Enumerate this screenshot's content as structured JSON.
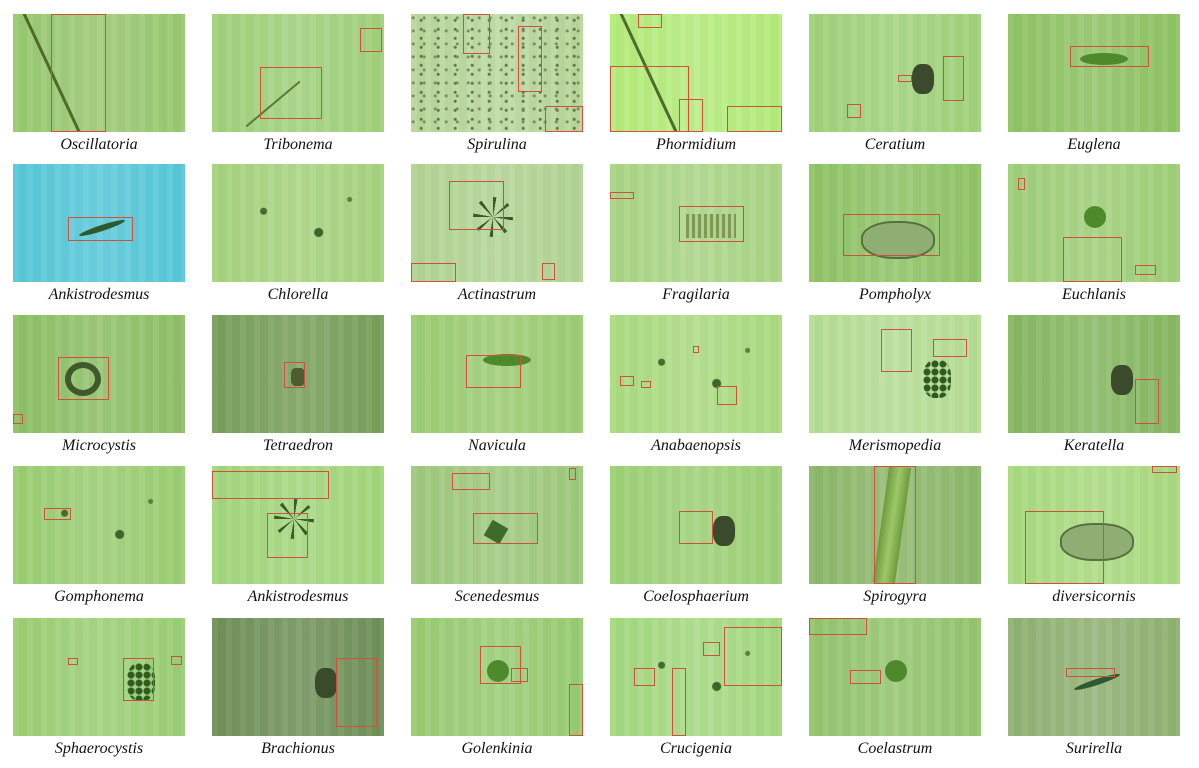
{
  "grid": {
    "rows": [
      {
        "cells": [
          {
            "label": "Oscillatoria",
            "bg": "#98c970",
            "organism": "filament-diagonal",
            "boxes": [
              [
                0.22,
                0.0,
                0.32,
                1.0
              ]
            ]
          },
          {
            "label": "Tribonema",
            "bg": "#a0d17a",
            "organism": "filament-diagonal-short",
            "boxes": [
              [
                0.28,
                0.45,
                0.36,
                0.44
              ],
              [
                0.86,
                0.12,
                0.13,
                0.2
              ]
            ]
          },
          {
            "label": "Spirulina",
            "bg": "#b8d79a",
            "organism": "speckled",
            "boxes": [
              [
                0.3,
                0.0,
                0.16,
                0.34
              ],
              [
                0.62,
                0.1,
                0.14,
                0.56
              ],
              [
                0.78,
                0.78,
                0.22,
                0.22
              ]
            ]
          },
          {
            "label": "Phormidium",
            "bg": "#b4ec7a",
            "organism": "filament-diagonal",
            "boxes": [
              [
                0.0,
                0.44,
                0.46,
                0.56
              ],
              [
                0.4,
                0.72,
                0.14,
                0.28
              ],
              [
                0.68,
                0.78,
                0.32,
                0.22
              ],
              [
                0.16,
                0.0,
                0.14,
                0.12
              ]
            ]
          },
          {
            "label": "Ceratium",
            "bg": "#9fd27a",
            "organism": "cell-dark",
            "boxes": [
              [
                0.78,
                0.36,
                0.12,
                0.38
              ],
              [
                0.52,
                0.52,
                0.08,
                0.06
              ],
              [
                0.22,
                0.76,
                0.08,
                0.12
              ]
            ]
          },
          {
            "label": "Euglena",
            "bg": "#8fc364",
            "organism": "cell-spindle",
            "boxes": [
              [
                0.36,
                0.27,
                0.46,
                0.18
              ]
            ]
          }
        ]
      },
      {
        "cells": [
          {
            "label": "Ankistrodesmus",
            "bg": "#56c8d8",
            "organism": "cell-needle",
            "boxes": [
              [
                0.32,
                0.45,
                0.38,
                0.2
              ]
            ]
          },
          {
            "label": "Chlorella",
            "bg": "#a6d37e",
            "organism": "dots",
            "boxes": []
          },
          {
            "label": "Actinastrum",
            "bg": "#b1d493",
            "organism": "star",
            "boxes": [
              [
                0.22,
                0.14,
                0.32,
                0.42
              ],
              [
                0.76,
                0.84,
                0.08,
                0.14
              ],
              [
                0.0,
                0.84,
                0.26,
                0.16
              ]
            ]
          },
          {
            "label": "Fragilaria",
            "bg": "#a9d585",
            "organism": "cell-rect",
            "boxes": [
              [
                0.4,
                0.36,
                0.38,
                0.3
              ],
              [
                0.0,
                0.24,
                0.14,
                0.06
              ]
            ]
          },
          {
            "label": "Pompholyx",
            "bg": "#8fc466",
            "organism": "cell-blob",
            "boxes": [
              [
                0.2,
                0.42,
                0.56,
                0.36
              ]
            ]
          },
          {
            "label": "Euchlanis",
            "bg": "#9fcf78",
            "organism": "cell-round",
            "boxes": [
              [
                0.32,
                0.62,
                0.34,
                0.38
              ],
              [
                0.74,
                0.86,
                0.12,
                0.08
              ],
              [
                0.06,
                0.12,
                0.04,
                0.1
              ]
            ]
          }
        ]
      },
      {
        "cells": [
          {
            "label": "Microcystis",
            "bg": "#8ec066",
            "organism": "cell-ring",
            "boxes": [
              [
                0.26,
                0.36,
                0.3,
                0.36
              ],
              [
                0.0,
                0.84,
                0.06,
                0.08
              ]
            ]
          },
          {
            "label": "Tetraedron",
            "bg": "#789f5a",
            "organism": "cell-dark-small",
            "boxes": [
              [
                0.42,
                0.4,
                0.12,
                0.22
              ]
            ]
          },
          {
            "label": "Navicula",
            "bg": "#9ccd72",
            "organism": "cell-spindle",
            "boxes": [
              [
                0.32,
                0.34,
                0.32,
                0.28
              ]
            ]
          },
          {
            "label": "Anabaenopsis",
            "bg": "#aadb80",
            "organism": "dots",
            "boxes": [
              [
                0.06,
                0.52,
                0.08,
                0.08
              ],
              [
                0.18,
                0.56,
                0.06,
                0.06
              ],
              [
                0.62,
                0.6,
                0.12,
                0.16
              ],
              [
                0.48,
                0.26,
                0.04,
                0.06
              ]
            ]
          },
          {
            "label": "Merismopedia",
            "bg": "#b5dd93",
            "organism": "grid-cells",
            "boxes": [
              [
                0.42,
                0.12,
                0.18,
                0.36
              ],
              [
                0.72,
                0.2,
                0.2,
                0.16
              ]
            ]
          },
          {
            "label": "Keratella",
            "bg": "#86b862",
            "organism": "cell-dark",
            "boxes": [
              [
                0.74,
                0.54,
                0.14,
                0.38
              ]
            ]
          }
        ]
      },
      {
        "cells": [
          {
            "label": "Gomphonema",
            "bg": "#9bce72",
            "organism": "dots",
            "boxes": [
              [
                0.18,
                0.36,
                0.16,
                0.1
              ]
            ]
          },
          {
            "label": "Ankistrodesmus",
            "bg": "#a2d67b",
            "organism": "star",
            "boxes": [
              [
                0.0,
                0.04,
                0.68,
                0.24
              ],
              [
                0.32,
                0.4,
                0.24,
                0.38
              ]
            ]
          },
          {
            "label": "Scenedesmus",
            "bg": "#9ec97c",
            "organism": "cell-small-pair",
            "boxes": [
              [
                0.24,
                0.06,
                0.22,
                0.14
              ],
              [
                0.36,
                0.4,
                0.38,
                0.26
              ],
              [
                0.92,
                0.02,
                0.04,
                0.1
              ]
            ]
          },
          {
            "label": "Coelosphaerium",
            "bg": "#9dd175",
            "organism": "cell-dark",
            "boxes": [
              [
                0.4,
                0.38,
                0.2,
                0.28
              ]
            ]
          },
          {
            "label": "Spirogyra",
            "bg": "#8cb86a",
            "organism": "filament-vertical",
            "boxes": [
              [
                0.38,
                0.0,
                0.24,
                1.0
              ]
            ]
          },
          {
            "label": "diversicornis",
            "bg": "#a8da7f",
            "organism": "cell-blob",
            "boxes": [
              [
                0.1,
                0.38,
                0.46,
                0.62
              ],
              [
                0.84,
                0.0,
                0.14,
                0.06
              ]
            ]
          }
        ]
      },
      {
        "cells": [
          {
            "label": "Sphaerocystis",
            "bg": "#9bcf74",
            "organism": "grid-cells",
            "boxes": [
              [
                0.64,
                0.34,
                0.18,
                0.36
              ],
              [
                0.92,
                0.32,
                0.06,
                0.08
              ],
              [
                0.32,
                0.34,
                0.06,
                0.06
              ]
            ]
          },
          {
            "label": "Brachionus",
            "bg": "#6f9058",
            "organism": "cell-dark",
            "boxes": [
              [
                0.72,
                0.34,
                0.24,
                0.58
              ]
            ]
          },
          {
            "label": "Golenkinia",
            "bg": "#98cc72",
            "organism": "cell-round",
            "boxes": [
              [
                0.4,
                0.24,
                0.24,
                0.32
              ],
              [
                0.58,
                0.42,
                0.1,
                0.12
              ],
              [
                0.92,
                0.56,
                0.08,
                0.44
              ]
            ]
          },
          {
            "label": "Crucigenia",
            "bg": "#a4d980",
            "organism": "dots",
            "boxes": [
              [
                0.66,
                0.08,
                0.34,
                0.5
              ],
              [
                0.14,
                0.42,
                0.12,
                0.16
              ],
              [
                0.36,
                0.42,
                0.08,
                0.58
              ],
              [
                0.54,
                0.2,
                0.1,
                0.12
              ]
            ]
          },
          {
            "label": "Coelastrum",
            "bg": "#94c56e",
            "organism": "cell-round",
            "boxes": [
              [
                0.0,
                0.0,
                0.34,
                0.14
              ],
              [
                0.24,
                0.44,
                0.18,
                0.12
              ]
            ]
          },
          {
            "label": "Surirella",
            "bg": "#8fb172",
            "organism": "cell-needle",
            "boxes": [
              [
                0.34,
                0.42,
                0.28,
                0.08
              ]
            ]
          }
        ]
      }
    ]
  }
}
